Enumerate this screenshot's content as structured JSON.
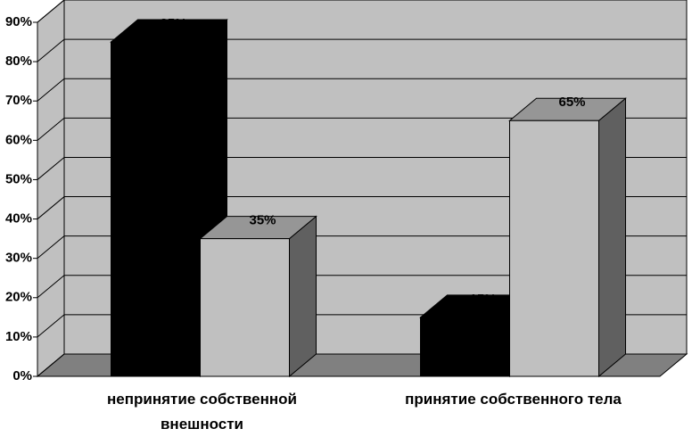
{
  "chart_data": {
    "type": "bar3d",
    "categories": [
      "непринятие собственной внешности",
      "принятие собственного тела"
    ],
    "series": [
      {
        "color": "#000000",
        "values": [
          85,
          15
        ],
        "value_labels": [
          "85%",
          "15%"
        ]
      },
      {
        "color": "#c0c0c0",
        "values": [
          35,
          65
        ],
        "value_labels": [
          "35%",
          "65%"
        ]
      }
    ],
    "ylim": [
      0,
      90
    ],
    "yticks": [
      {
        "value": 0,
        "label": "0%"
      },
      {
        "value": 10,
        "label": "10%"
      },
      {
        "value": 20,
        "label": "20%"
      },
      {
        "value": 30,
        "label": "30%"
      },
      {
        "value": 40,
        "label": "40%"
      },
      {
        "value": 50,
        "label": "50%"
      },
      {
        "value": 60,
        "label": "60%"
      },
      {
        "value": 70,
        "label": "70%"
      },
      {
        "value": 80,
        "label": "80%"
      },
      {
        "value": 90,
        "label": "90%"
      }
    ],
    "grid": true
  }
}
